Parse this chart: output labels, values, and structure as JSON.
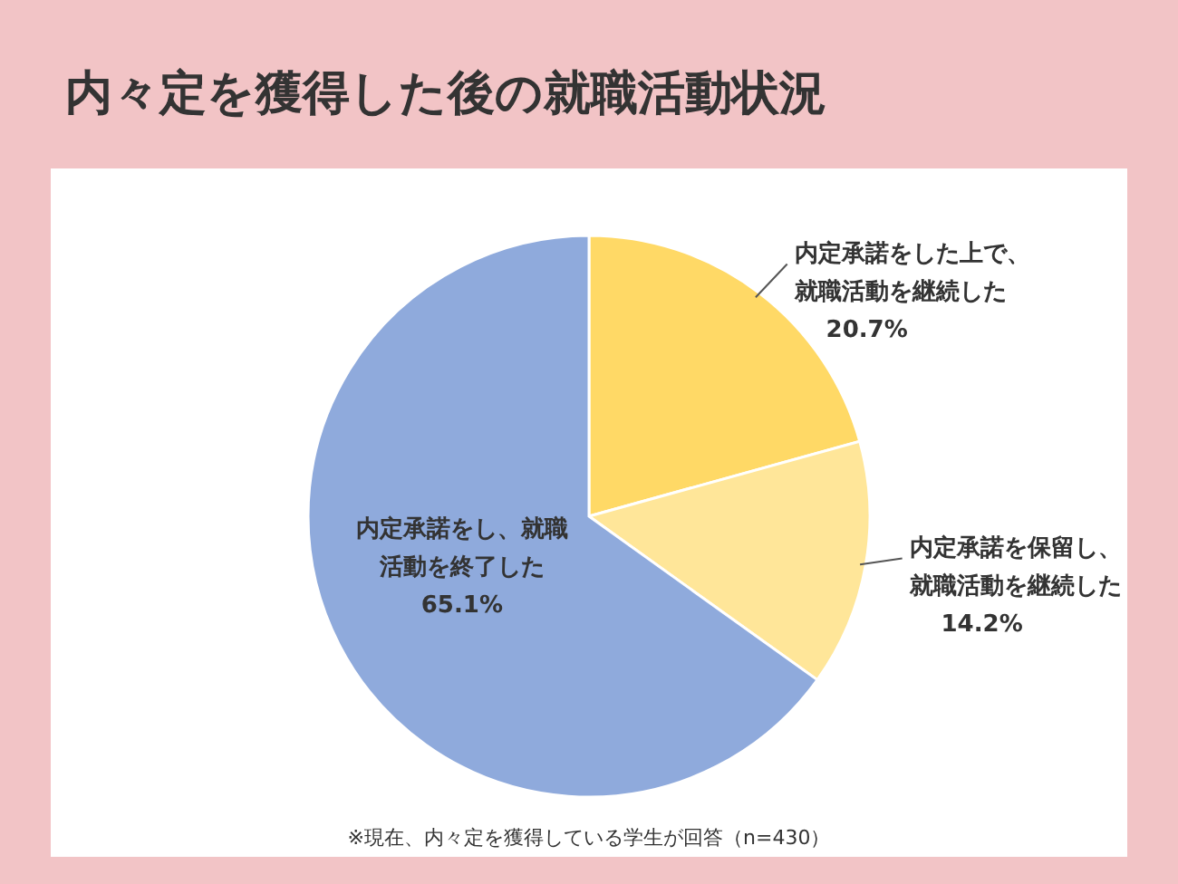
{
  "chart_data": {
    "type": "pie",
    "title": "内々定を獲得した後の就職活動状況",
    "categories": [
      "内定承諾をした上で、就職活動を継続した",
      "内定承諾を保留し、就職活動を継続した",
      "内定承諾をし、就職活動を終了した"
    ],
    "values": [
      20.7,
      14.2,
      65.1
    ],
    "value_labels": [
      "20.7%",
      "14.2%",
      "65.1%"
    ],
    "colors": [
      "#ffd966",
      "#ffe699",
      "#8faadc"
    ],
    "annotations": [
      "※現在、内々定を獲得している学生が回答（n=430）"
    ]
  }
}
